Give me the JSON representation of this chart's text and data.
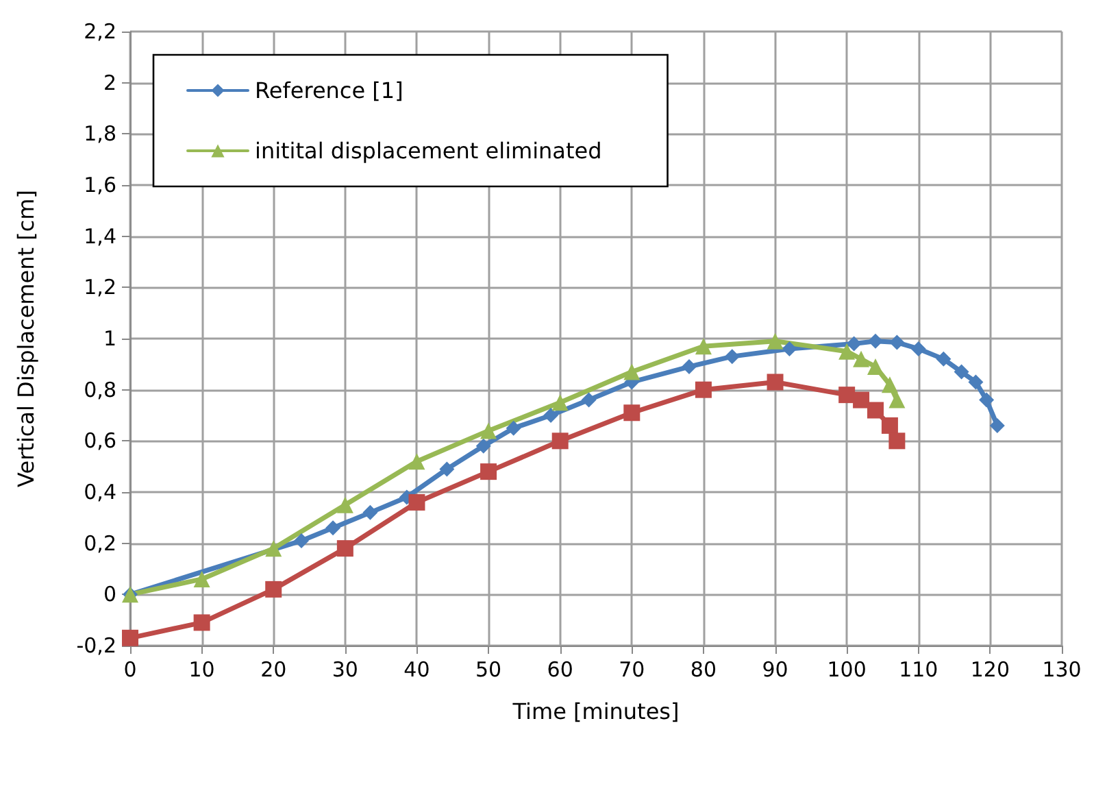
{
  "chart_data": {
    "type": "line",
    "xlabel": "Time [minutes]",
    "ylabel": "Vertical Displacement [cm]",
    "xlim": [
      0,
      130
    ],
    "xticks": [
      0,
      10,
      20,
      30,
      40,
      50,
      60,
      70,
      80,
      90,
      100,
      110,
      120,
      130
    ],
    "ylim": [
      -0.2,
      2.2
    ],
    "yticks": [
      {
        "value": -0.2,
        "label": "-0,2"
      },
      0,
      {
        "value": 0.2,
        "label": "0,2"
      },
      {
        "value": 0.4,
        "label": "0,4"
      },
      {
        "value": 0.6,
        "label": "0,6"
      },
      {
        "value": 0.8,
        "label": "0,8"
      },
      1,
      {
        "value": 1.2,
        "label": "1,2"
      },
      {
        "value": 1.4,
        "label": "1,4"
      },
      {
        "value": 1.6,
        "label": "1,6"
      },
      {
        "value": 1.8,
        "label": "1,8"
      },
      2,
      {
        "value": 2.2,
        "label": "2,2"
      }
    ],
    "grid": true,
    "legend": "top left",
    "series": [
      {
        "name": "Reference [1]",
        "color": "#4a7ebb",
        "marker": "diamond",
        "x": [
          0,
          23.9,
          28.3,
          33.5,
          38.6,
          44.2,
          49.3,
          53.5,
          58.7,
          64,
          70,
          78,
          84,
          92,
          101,
          104,
          107,
          110,
          113.5,
          116,
          118,
          119.5,
          121
        ],
        "values": [
          0,
          0.21,
          0.26,
          0.32,
          0.38,
          0.49,
          0.58,
          0.65,
          0.7,
          0.76,
          0.83,
          0.89,
          0.93,
          0.96,
          0.98,
          0.99,
          0.985,
          0.96,
          0.92,
          0.87,
          0.83,
          0.76,
          0.66
        ]
      },
      {
        "color": "#be4b48",
        "marker": "square",
        "x": [
          0,
          10,
          20,
          30,
          40,
          50,
          60,
          70,
          80,
          90,
          100,
          102,
          104,
          106,
          107
        ],
        "values": [
          -0.17,
          -0.11,
          0.02,
          0.18,
          0.36,
          0.48,
          0.6,
          0.71,
          0.8,
          0.83,
          0.78,
          0.76,
          0.72,
          0.66,
          0.6
        ]
      },
      {
        "name": "initital displacement eliminated",
        "color": "#98b954",
        "marker": "triangle",
        "x": [
          0,
          10,
          20,
          30,
          40,
          50,
          60,
          70,
          80,
          90,
          100,
          102,
          104,
          106,
          107
        ],
        "values": [
          0,
          0.06,
          0.18,
          0.35,
          0.52,
          0.64,
          0.75,
          0.87,
          0.97,
          0.99,
          0.95,
          0.92,
          0.89,
          0.82,
          0.76
        ]
      }
    ]
  }
}
